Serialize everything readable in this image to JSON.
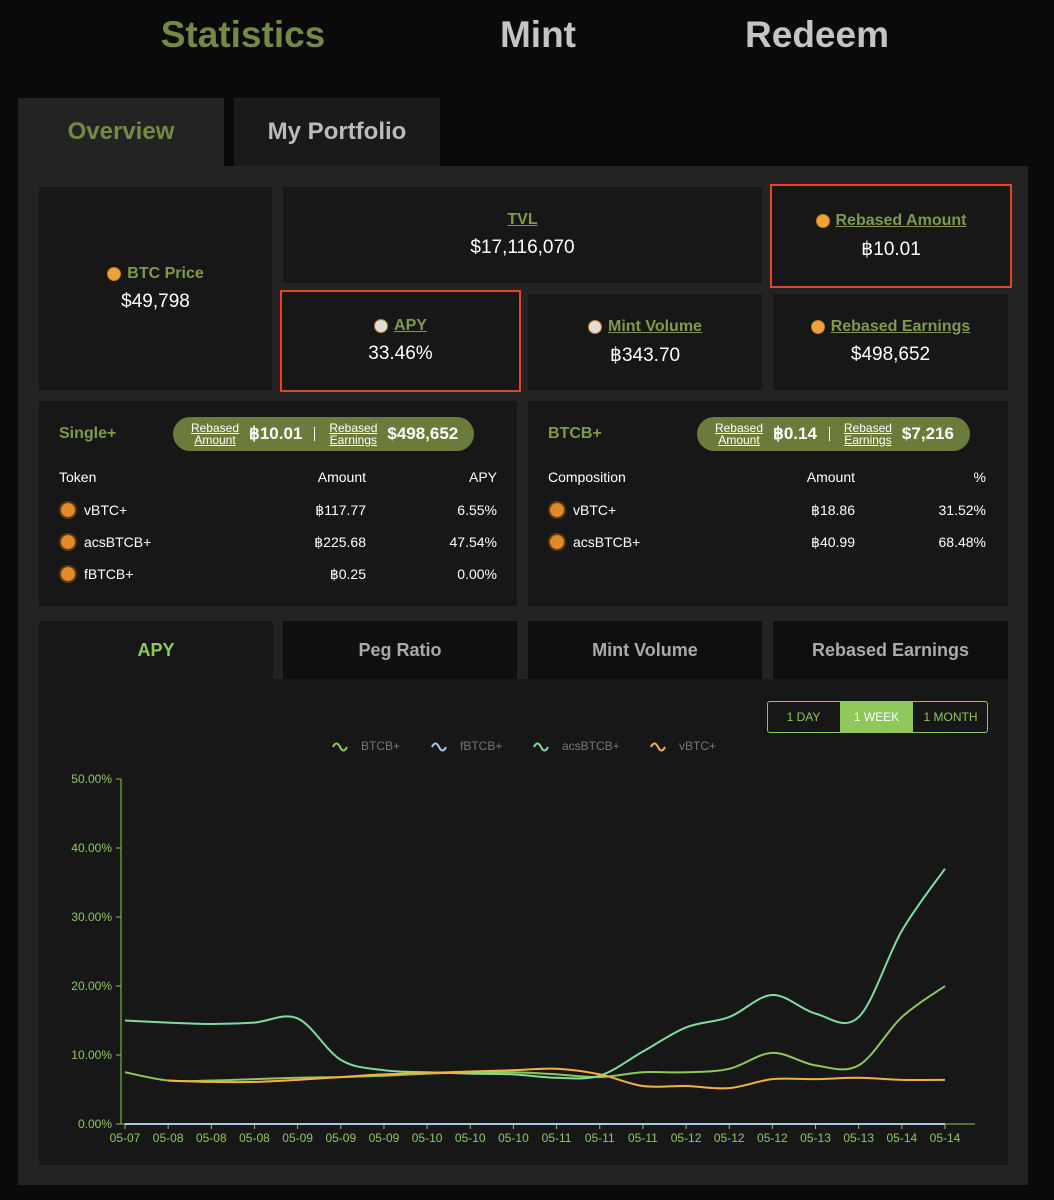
{
  "nav": {
    "items": [
      "Statistics",
      "Mint",
      "Redeem"
    ]
  },
  "tabs": [
    "Overview",
    "My Portfolio"
  ],
  "stats": {
    "btc_price": {
      "label": "BTC Price",
      "value": "$49,798"
    },
    "tvl": {
      "label": "TVL",
      "value": "$17,116,070"
    },
    "rebased_amount": {
      "label": "Rebased Amount",
      "value": "฿10.01"
    },
    "apy": {
      "label": "APY",
      "value": "33.46%"
    },
    "mint_volume": {
      "label": "Mint Volume",
      "value": "฿343.70"
    },
    "rebased_earnings": {
      "label": "Rebased Earnings",
      "value": "$498,652"
    }
  },
  "single": {
    "title": "Single+",
    "rebased_amount_label": "Rebased Amount",
    "rebased_amount": "฿10.01",
    "rebased_earnings_label": "Rebased Earnings",
    "rebased_earnings": "$498,652",
    "columns": [
      "Token",
      "Amount",
      "APY"
    ],
    "rows": [
      [
        "vBTC+",
        "฿117.77",
        "6.55%"
      ],
      [
        "acsBTCB+",
        "฿225.68",
        "47.54%"
      ],
      [
        "fBTCB+",
        "฿0.25",
        "0.00%"
      ]
    ]
  },
  "btcb": {
    "title": "BTCB+",
    "rebased_amount_label": "Rebased Amount",
    "rebased_amount": "฿0.14",
    "rebased_earnings_label": "Rebased Earnings",
    "rebased_earnings": "$7,216",
    "columns": [
      "Composition",
      "Amount",
      "%"
    ],
    "rows": [
      [
        "vBTC+",
        "฿18.86",
        "31.52%"
      ],
      [
        "acsBTCB+",
        "฿40.99",
        "68.48%"
      ]
    ]
  },
  "chart_tabs": [
    "APY",
    "Peg Ratio",
    "Mint Volume",
    "Rebased Earnings"
  ],
  "ranges": [
    "1 DAY",
    "1 WEEK",
    "1 MONTH"
  ],
  "chart_data": {
    "type": "line",
    "categories": [
      "05-07",
      "05-08",
      "05-08",
      "05-08",
      "05-09",
      "05-09",
      "05-09",
      "05-10",
      "05-10",
      "05-10",
      "05-11",
      "05-11",
      "05-11",
      "05-12",
      "05-12",
      "05-12",
      "05-13",
      "05-13",
      "05-14",
      "05-14"
    ],
    "series": [
      {
        "name": "BTCB+",
        "color": "#8fc85a",
        "values": [
          7.5,
          6.3,
          6.3,
          6.5,
          6.7,
          6.8,
          7.0,
          7.3,
          7.5,
          7.5,
          7.2,
          6.8,
          7.5,
          7.5,
          8.0,
          10.3,
          8.5,
          8.5,
          15.5,
          20
        ]
      },
      {
        "name": "fBTCB+",
        "color": "#a8c8e8",
        "values": [
          0,
          0,
          0,
          0,
          0,
          0,
          0,
          0,
          0,
          0,
          0,
          0,
          0,
          0,
          0,
          0,
          0,
          0,
          0,
          0
        ]
      },
      {
        "name": "acsBTCB+",
        "color": "#7fdca0",
        "values": [
          15.0,
          14.7,
          14.5,
          14.7,
          15.3,
          9.3,
          7.8,
          7.5,
          7.3,
          7.2,
          6.7,
          7.0,
          10.5,
          14.0,
          15.5,
          18.7,
          16.0,
          15.5,
          28,
          37
        ]
      },
      {
        "name": "vBTC+",
        "color": "#f5b041",
        "values": [
          null,
          6.3,
          6.1,
          6.1,
          6.4,
          6.8,
          7.2,
          7.4,
          7.6,
          7.8,
          8.0,
          7.2,
          5.5,
          5.5,
          5.2,
          6.5,
          6.5,
          6.7,
          6.4,
          6.4
        ]
      }
    ],
    "ylim": [
      0,
      50
    ],
    "yticks": [
      {
        "value": 0,
        "label": "0.00%"
      },
      {
        "value": 10,
        "label": "10.00%"
      },
      {
        "value": 20,
        "label": "20.00%"
      },
      {
        "value": 30,
        "label": "30.00%"
      },
      {
        "value": 40,
        "label": "40.00%"
      },
      {
        "value": 50,
        "label": "50.00%"
      }
    ],
    "grid": false
  }
}
